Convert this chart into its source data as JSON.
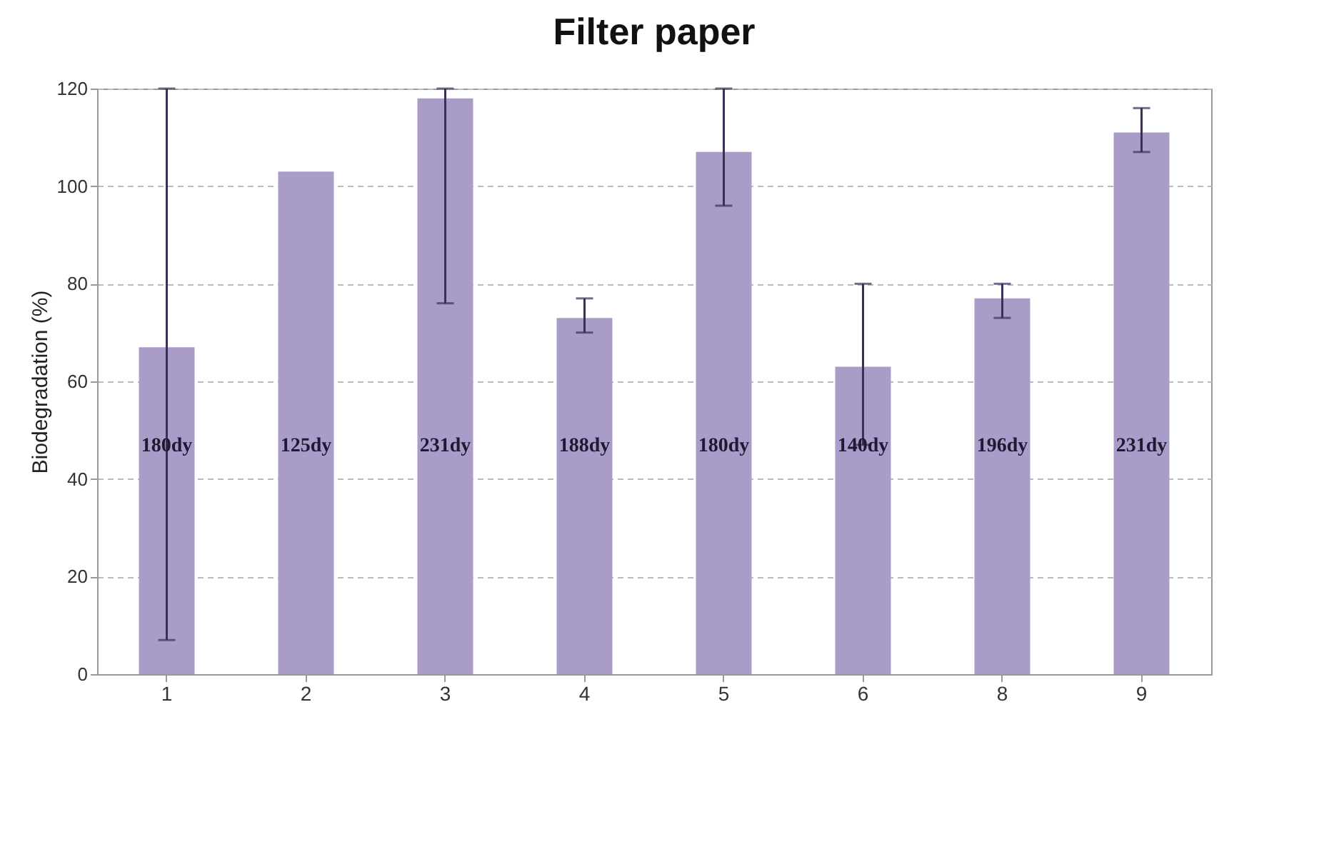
{
  "chart_data": {
    "type": "bar",
    "title": "Filter paper",
    "ylabel": "Biodegradation (%)",
    "categories": [
      "1",
      "2",
      "3",
      "4",
      "5",
      "6",
      "8",
      "9"
    ],
    "values": [
      67,
      103,
      118,
      73,
      107,
      63,
      77,
      111
    ],
    "errors": [
      [
        7,
        120
      ],
      null,
      [
        76,
        120
      ],
      [
        70,
        77
      ],
      [
        96,
        120
      ],
      [
        47,
        80
      ],
      [
        73,
        80
      ],
      [
        107,
        116
      ]
    ],
    "color": "#aa9cc8",
    "ylim": [
      0,
      120
    ],
    "yticks": [
      0,
      20,
      40,
      60,
      80,
      100,
      120
    ],
    "grid": "y",
    "annotations": [
      "180dy",
      "125dy",
      "231dy",
      "188dy",
      "180dy",
      "140dy",
      "196dy",
      "231dy"
    ]
  }
}
